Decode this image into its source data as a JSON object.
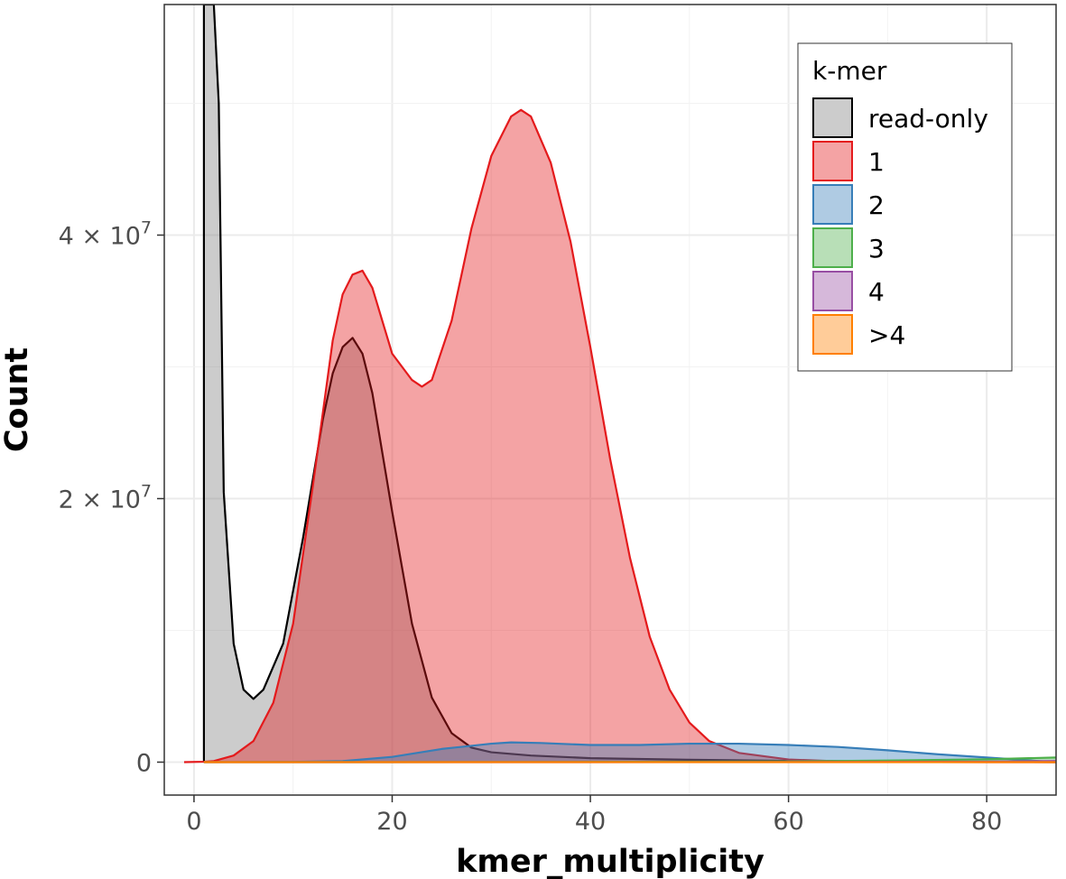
{
  "chart_data": {
    "type": "area",
    "xlabel": "kmer_multiplicity",
    "ylabel": "Count",
    "xlim": [
      -3,
      87
    ],
    "ylim": [
      -2500000,
      57500000
    ],
    "x_ticks": [
      0,
      20,
      40,
      60,
      80
    ],
    "x_tick_labels": [
      "0",
      "20",
      "40",
      "60",
      "80"
    ],
    "y_ticks": [
      0,
      20000000,
      40000000
    ],
    "y_tick_labels": [
      {
        "mantissa": "0",
        "exp": ""
      },
      {
        "mantissa": "2 × 10",
        "exp": "7"
      },
      {
        "mantissa": "4 × 10",
        "exp": "7"
      }
    ],
    "grid": true,
    "legend": {
      "title": "k-mer",
      "position": "top-right",
      "entries": [
        "read-only",
        "1",
        "2",
        "3",
        "4",
        ">4"
      ]
    },
    "series": [
      {
        "name": "read-only",
        "fill": "#808080",
        "stroke": "#000000",
        "x": [
          1,
          1,
          2,
          2.5,
          3,
          4,
          5,
          6,
          7,
          9,
          11,
          13,
          14,
          15,
          16,
          17,
          18,
          20,
          22,
          24,
          26,
          28,
          30,
          34,
          40,
          50,
          60,
          70,
          80,
          87
        ],
        "y": [
          0,
          57500000,
          57500000,
          50000000,
          20500000,
          9000000,
          5500000,
          4800000,
          5500000,
          9000000,
          17000000,
          26000000,
          29500000,
          31500000,
          32200000,
          31000000,
          28000000,
          19000000,
          10500000,
          4900000,
          2200000,
          1100000,
          750000,
          500000,
          300000,
          180000,
          100000,
          60000,
          20000,
          0
        ]
      },
      {
        "name": "1",
        "fill": "#e41a1c",
        "stroke": "#e41a1c",
        "x": [
          -1,
          1,
          2,
          4,
          6,
          8,
          10,
          12,
          14,
          15,
          16,
          17,
          18,
          20,
          22,
          23,
          24,
          26,
          28,
          30,
          32,
          33,
          34,
          36,
          38,
          40,
          42,
          44,
          46,
          48,
          50,
          52,
          55,
          60,
          65,
          70,
          75,
          80,
          87
        ],
        "y": [
          0,
          30000,
          80000,
          500000,
          1600000,
          4500000,
          10500000,
          21000000,
          32000000,
          35500000,
          37000000,
          37300000,
          36000000,
          31000000,
          29000000,
          28500000,
          29000000,
          33500000,
          40500000,
          46000000,
          49000000,
          49500000,
          49000000,
          45500000,
          39500000,
          31500000,
          23000000,
          15500000,
          9500000,
          5500000,
          3000000,
          1600000,
          700000,
          200000,
          60000,
          20000,
          5000,
          0,
          0
        ]
      },
      {
        "name": "2",
        "fill": "#377eb8",
        "stroke": "#377eb8",
        "x": [
          1,
          10,
          15,
          20,
          25,
          30,
          32,
          35,
          40,
          45,
          50,
          55,
          60,
          65,
          70,
          75,
          80,
          85,
          87
        ],
        "y": [
          0,
          15000,
          80000,
          400000,
          1000000,
          1400000,
          1500000,
          1450000,
          1300000,
          1300000,
          1400000,
          1400000,
          1300000,
          1150000,
          900000,
          600000,
          350000,
          100000,
          0
        ]
      },
      {
        "name": "3",
        "fill": "#4daf4a",
        "stroke": "#4daf4a",
        "x": [
          1,
          20,
          40,
          60,
          70,
          80,
          87
        ],
        "y": [
          0,
          0,
          15000,
          50000,
          120000,
          220000,
          350000
        ]
      },
      {
        "name": "4",
        "fill": "#984ea3",
        "stroke": "#984ea3",
        "x": [
          1,
          40,
          60,
          80,
          87
        ],
        "y": [
          0,
          0,
          10000,
          40000,
          90000
        ]
      },
      {
        "name": ">4",
        "fill": "#ff7f00",
        "stroke": "#ff7f00",
        "x": [
          1,
          87
        ],
        "y": [
          0,
          0
        ]
      }
    ]
  }
}
